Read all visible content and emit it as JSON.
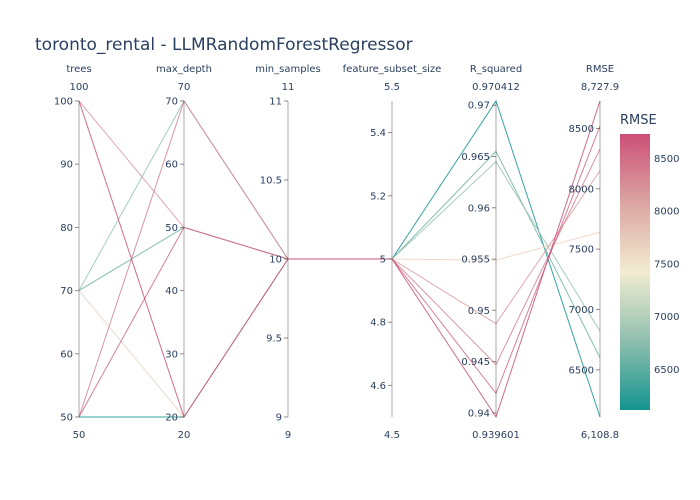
{
  "chart_data": {
    "type": "parallel_coordinates",
    "title": "toronto_rental - LLMRandomForestRegressor",
    "dimensions": [
      {
        "label": "trees",
        "range": [
          50,
          100
        ],
        "ticks": [
          50,
          60,
          70,
          80,
          90,
          100
        ],
        "tick_labels": [
          "50",
          "60",
          "70",
          "80",
          "90",
          "100"
        ],
        "min_label": "50",
        "max_label": "100"
      },
      {
        "label": "max_depth",
        "range": [
          20,
          70
        ],
        "ticks": [
          20,
          30,
          40,
          50,
          60,
          70
        ],
        "tick_labels": [
          "20",
          "30",
          "40",
          "50",
          "60",
          "70"
        ],
        "min_label": "20",
        "max_label": "70"
      },
      {
        "label": "min_samples",
        "range": [
          9,
          11
        ],
        "ticks": [
          9,
          9.5,
          10,
          10.5,
          11
        ],
        "tick_labels": [
          "9",
          "9.5",
          "10",
          "10.5",
          "11"
        ],
        "min_label": "9",
        "max_label": "11"
      },
      {
        "label": "feature_subset_size",
        "range": [
          4.5,
          5.5
        ],
        "ticks": [
          4.6,
          4.8,
          5,
          5.2,
          5.4
        ],
        "tick_labels": [
          "4.6",
          "4.8",
          "5",
          "5.2",
          "5.4"
        ],
        "min_label": "4.5",
        "max_label": "5.5"
      },
      {
        "label": "R_squared",
        "range": [
          0.939601,
          0.970412
        ],
        "ticks": [
          0.94,
          0.945,
          0.95,
          0.955,
          0.96,
          0.965,
          0.97
        ],
        "tick_labels": [
          "0.94",
          "0.945",
          "0.95",
          "0.955",
          "0.96",
          "0.965",
          "0.97"
        ],
        "min_label": "0.939601",
        "max_label": "0.970412"
      },
      {
        "label": "RMSE",
        "range": [
          6108.8,
          8727.9
        ],
        "ticks": [
          6500,
          7000,
          7500,
          8000,
          8500
        ],
        "tick_labels": [
          "6500",
          "7000",
          "7500",
          "8000",
          "8500"
        ],
        "min_label": "6,108.8",
        "max_label": "8,727.9"
      }
    ],
    "rows": [
      {
        "values": [
          50,
          20,
          10,
          5,
          0.970412,
          6108.8
        ]
      },
      {
        "values": [
          70,
          50,
          10,
          5,
          0.9655,
          6600
        ]
      },
      {
        "values": [
          70,
          70,
          10,
          5,
          0.9645,
          6820
        ]
      },
      {
        "values": [
          70,
          20,
          10,
          5,
          0.9549,
          7640
        ]
      },
      {
        "values": [
          100,
          50,
          10,
          5,
          0.9487,
          8150
        ]
      },
      {
        "values": [
          50,
          70,
          10,
          5,
          0.9447,
          8330
        ]
      },
      {
        "values": [
          50,
          50,
          10,
          5,
          0.9419,
          8520
        ]
      },
      {
        "values": [
          100,
          20,
          10,
          5,
          0.939601,
          8727.9
        ]
      }
    ],
    "colorbar": {
      "title": "RMSE",
      "ticks": [
        6500,
        7000,
        7500,
        8000,
        8500
      ],
      "tick_labels": [
        "6500",
        "7000",
        "7500",
        "8000",
        "8500"
      ],
      "range": [
        6108.8,
        8727.9
      ],
      "colorscale": [
        "#009B9E",
        "#42B7B9",
        "#A7D3D4",
        "#F1F1F1",
        "#E4C1D9",
        "#D691C1",
        "#C75DAB"
      ]
    },
    "colorscale_used": [
      "#1b9e96",
      "#c9d8c4",
      "#f2ecd6",
      "#d88a94",
      "#cc5d7a",
      "#c94a6e"
    ]
  }
}
